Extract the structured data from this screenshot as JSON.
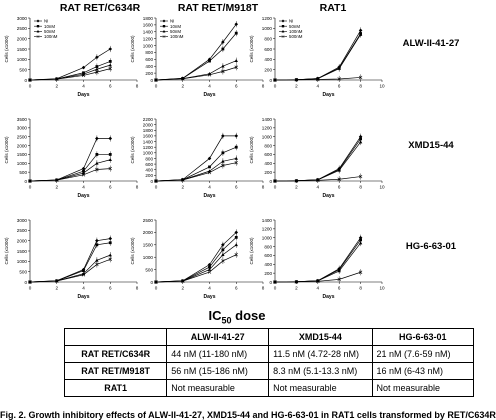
{
  "columns": [
    "RAT RET/C634R",
    "RAT RET/M918T",
    "RAT1"
  ],
  "rows": [
    "ALW-II-41-27",
    "XMD15-44",
    "HG-6-63-01"
  ],
  "chart_data": [
    {
      "type": "line",
      "row": 0,
      "col": 0,
      "xlabel": "Days",
      "ylabel": "Cells (x1000)",
      "xlim": [
        0,
        8
      ],
      "ylim": [
        0,
        3000
      ],
      "yticks": [
        0,
        500,
        1000,
        1500,
        2000,
        2500,
        3000
      ],
      "xticks": [
        0,
        2,
        4,
        6,
        8
      ],
      "legend": [
        "NI",
        "10nM",
        "50nM",
        "100nM"
      ],
      "series": [
        {
          "name": "NI",
          "x": [
            0,
            2,
            4,
            5,
            6
          ],
          "y": [
            0,
            60,
            600,
            1100,
            1500
          ]
        },
        {
          "name": "10nM",
          "x": [
            0,
            2,
            4,
            5,
            6
          ],
          "y": [
            0,
            50,
            350,
            650,
            900
          ]
        },
        {
          "name": "50nM",
          "x": [
            0,
            2,
            4,
            5,
            6
          ],
          "y": [
            0,
            45,
            280,
            520,
            720
          ]
        },
        {
          "name": "100nM",
          "x": [
            0,
            2,
            4,
            5,
            6
          ],
          "y": [
            0,
            40,
            220,
            380,
            550
          ]
        }
      ]
    },
    {
      "type": "line",
      "row": 0,
      "col": 1,
      "xlabel": "Days",
      "ylabel": "Cells (x1000)",
      "xlim": [
        0,
        8
      ],
      "ylim": [
        0,
        1800
      ],
      "yticks": [
        0,
        200,
        400,
        600,
        800,
        1000,
        1200,
        1400,
        1600,
        1800
      ],
      "xticks": [
        0,
        2,
        4,
        6,
        8
      ],
      "legend": [
        "NI",
        "10nM",
        "50nM",
        "100nM"
      ],
      "series": [
        {
          "name": "NI",
          "x": [
            0,
            2,
            4,
            5,
            6
          ],
          "y": [
            0,
            50,
            600,
            1100,
            1620
          ]
        },
        {
          "name": "10nM",
          "x": [
            0,
            2,
            4,
            5,
            6
          ],
          "y": [
            0,
            45,
            550,
            900,
            1360
          ]
        },
        {
          "name": "50nM",
          "x": [
            0,
            2,
            4,
            5,
            6
          ],
          "y": [
            0,
            40,
            180,
            400,
            560
          ]
        },
        {
          "name": "100nM",
          "x": [
            0,
            2,
            4,
            5,
            6
          ],
          "y": [
            0,
            35,
            150,
            250,
            370
          ]
        }
      ]
    },
    {
      "type": "line",
      "row": 0,
      "col": 2,
      "xlabel": "Days",
      "ylabel": "Cells (x1000)",
      "xlim": [
        0,
        10
      ],
      "ylim": [
        0,
        1200
      ],
      "yticks": [
        0,
        200,
        400,
        600,
        800,
        1000,
        1200
      ],
      "xticks": [
        0,
        2,
        4,
        6,
        8,
        10
      ],
      "legend": [
        "NI",
        "50nM",
        "100nM",
        "500nM"
      ],
      "series": [
        {
          "name": "NI",
          "x": [
            0,
            2,
            4,
            6,
            8
          ],
          "y": [
            0,
            5,
            30,
            250,
            960
          ]
        },
        {
          "name": "50nM",
          "x": [
            0,
            2,
            4,
            6,
            8
          ],
          "y": [
            0,
            5,
            28,
            230,
            900
          ]
        },
        {
          "name": "100nM",
          "x": [
            0,
            2,
            4,
            6,
            8
          ],
          "y": [
            0,
            5,
            25,
            220,
            880
          ]
        },
        {
          "name": "500nM",
          "x": [
            0,
            2,
            4,
            6,
            8
          ],
          "y": [
            0,
            5,
            10,
            20,
            50
          ]
        }
      ]
    },
    {
      "type": "line",
      "row": 1,
      "col": 0,
      "xlabel": "Days",
      "ylabel": "Cells (x1000)",
      "xlim": [
        0,
        8
      ],
      "ylim": [
        0,
        3500
      ],
      "yticks": [
        0,
        500,
        1000,
        1500,
        2000,
        2500,
        3000,
        3500
      ],
      "xticks": [
        0,
        2,
        4,
        6,
        8
      ],
      "series": [
        {
          "x": [
            0,
            2,
            4,
            5,
            6
          ],
          "y": [
            0,
            60,
            700,
            2400,
            2400
          ]
        },
        {
          "x": [
            0,
            2,
            4,
            5,
            6
          ],
          "y": [
            0,
            55,
            550,
            1500,
            1500
          ]
        },
        {
          "x": [
            0,
            2,
            4,
            5,
            6
          ],
          "y": [
            0,
            50,
            450,
            1000,
            1200
          ]
        },
        {
          "x": [
            0,
            2,
            4,
            5,
            6
          ],
          "y": [
            0,
            45,
            350,
            650,
            700
          ]
        }
      ]
    },
    {
      "type": "line",
      "row": 1,
      "col": 1,
      "xlabel": "Days",
      "ylabel": "Cells (x1000)",
      "xlim": [
        0,
        8
      ],
      "ylim": [
        0,
        2200
      ],
      "yticks": [
        0,
        200,
        400,
        600,
        800,
        1000,
        1200,
        1400,
        1600,
        1800,
        2000,
        2200
      ],
      "xticks": [
        0,
        2,
        4,
        6,
        8
      ],
      "series": [
        {
          "x": [
            0,
            2,
            4,
            5,
            6
          ],
          "y": [
            0,
            50,
            800,
            1600,
            1600
          ]
        },
        {
          "x": [
            0,
            2,
            4,
            5,
            6
          ],
          "y": [
            0,
            45,
            500,
            1000,
            1200
          ]
        },
        {
          "x": [
            0,
            2,
            4,
            5,
            6
          ],
          "y": [
            0,
            40,
            350,
            700,
            800
          ]
        },
        {
          "x": [
            0,
            2,
            4,
            5,
            6
          ],
          "y": [
            0,
            35,
            300,
            550,
            650
          ]
        }
      ]
    },
    {
      "type": "line",
      "row": 1,
      "col": 2,
      "xlabel": "Days",
      "ylabel": "Cells (x1000)",
      "xlim": [
        0,
        10
      ],
      "ylim": [
        0,
        1400
      ],
      "yticks": [
        0,
        200,
        400,
        600,
        800,
        1000,
        1200,
        1400
      ],
      "xticks": [
        0,
        2,
        4,
        6,
        8,
        10
      ],
      "series": [
        {
          "x": [
            0,
            2,
            4,
            6,
            8
          ],
          "y": [
            0,
            5,
            30,
            280,
            1000
          ]
        },
        {
          "x": [
            0,
            2,
            4,
            6,
            8
          ],
          "y": [
            0,
            5,
            28,
            260,
            950
          ]
        },
        {
          "x": [
            0,
            2,
            4,
            6,
            8
          ],
          "y": [
            0,
            5,
            25,
            240,
            880
          ]
        },
        {
          "x": [
            0,
            2,
            4,
            6,
            8
          ],
          "y": [
            0,
            5,
            15,
            40,
            100
          ]
        }
      ]
    },
    {
      "type": "line",
      "row": 2,
      "col": 0,
      "xlabel": "Days",
      "ylabel": "Cells (x1000)",
      "xlim": [
        0,
        8
      ],
      "ylim": [
        0,
        3000
      ],
      "yticks": [
        0,
        500,
        1000,
        1500,
        2000,
        2500,
        3000
      ],
      "xticks": [
        0,
        2,
        4,
        6,
        8
      ],
      "series": [
        {
          "x": [
            0,
            2,
            4,
            5,
            6
          ],
          "y": [
            0,
            60,
            600,
            2000,
            2100
          ]
        },
        {
          "x": [
            0,
            2,
            4,
            5,
            6
          ],
          "y": [
            0,
            55,
            550,
            1800,
            1900
          ]
        },
        {
          "x": [
            0,
            2,
            4,
            5,
            6
          ],
          "y": [
            0,
            50,
            400,
            1050,
            1300
          ]
        },
        {
          "x": [
            0,
            2,
            4,
            5,
            6
          ],
          "y": [
            0,
            45,
            350,
            850,
            1100
          ]
        }
      ]
    },
    {
      "type": "line",
      "row": 2,
      "col": 1,
      "xlabel": "Days",
      "ylabel": "Cells (x1000)",
      "xlim": [
        0,
        8
      ],
      "ylim": [
        0,
        2500
      ],
      "yticks": [
        0,
        500,
        1000,
        1500,
        2000,
        2500
      ],
      "xticks": [
        0,
        2,
        4,
        6,
        8
      ],
      "series": [
        {
          "x": [
            0,
            2,
            4,
            5,
            6
          ],
          "y": [
            0,
            50,
            700,
            1500,
            2000
          ]
        },
        {
          "x": [
            0,
            2,
            4,
            5,
            6
          ],
          "y": [
            0,
            45,
            600,
            1300,
            1800
          ]
        },
        {
          "x": [
            0,
            2,
            4,
            5,
            6
          ],
          "y": [
            0,
            40,
            500,
            1100,
            1500
          ]
        },
        {
          "x": [
            0,
            2,
            4,
            5,
            6
          ],
          "y": [
            0,
            35,
            400,
            850,
            1100
          ]
        }
      ]
    },
    {
      "type": "line",
      "row": 2,
      "col": 2,
      "xlabel": "Days",
      "ylabel": "Cells (x1000)",
      "xlim": [
        0,
        10
      ],
      "ylim": [
        0,
        1400
      ],
      "yticks": [
        0,
        200,
        400,
        600,
        800,
        1000,
        1200,
        1400
      ],
      "xticks": [
        0,
        2,
        4,
        6,
        8,
        10
      ],
      "series": [
        {
          "x": [
            0,
            2,
            4,
            6,
            8
          ],
          "y": [
            0,
            5,
            30,
            300,
            1000
          ]
        },
        {
          "x": [
            0,
            2,
            4,
            6,
            8
          ],
          "y": [
            0,
            5,
            28,
            280,
            950
          ]
        },
        {
          "x": [
            0,
            2,
            4,
            6,
            8
          ],
          "y": [
            0,
            5,
            25,
            250,
            880
          ]
        },
        {
          "x": [
            0,
            2,
            4,
            6,
            8
          ],
          "y": [
            0,
            5,
            15,
            60,
            220
          ]
        }
      ]
    }
  ],
  "table": {
    "title_main": "IC",
    "title_sub": "50",
    "title_rest": " dose",
    "headers": [
      "",
      "ALW-II-41-27",
      "XMD15-44",
      "HG-6-63-01"
    ],
    "rows": [
      [
        "RAT RET/C634R",
        "44 nM (11-180 nM)",
        "11.5 nM (4.72-28 nM)",
        "21 nM (7.6-59 nM)"
      ],
      [
        "RAT RET/M918T",
        "56 nM (15-186 nM)",
        "8.3 nM (5.1-13.3 nM)",
        "16 nM (6-43 nM)"
      ],
      [
        "RAT1",
        "Not measurable",
        "Not measurable",
        "Not measurable"
      ]
    ]
  },
  "caption": "Fig. 2. Growth inhibitory effects of ALW-II-41-27, XMD15-44 and HG-6-63-01 in RAT1 cells transformed by RET/C634R"
}
